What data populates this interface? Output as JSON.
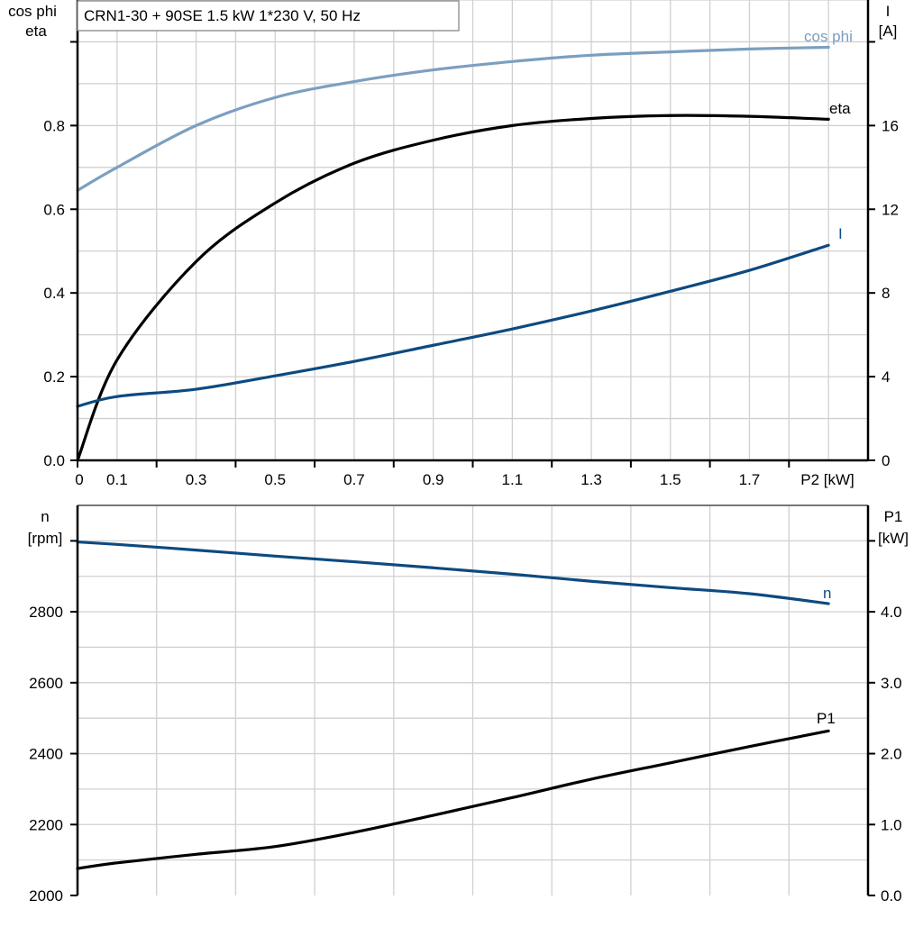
{
  "title": "CRN1-30 + 90SE   1.5 kW   1*230 V, 50 Hz",
  "colors": {
    "cos_phi": "#7b9fc0",
    "eta": "#000000",
    "I": "#0d4a80",
    "n": "#0d4a80",
    "P1": "#000000",
    "grid": "#d0d0d0"
  },
  "chart_data": [
    {
      "type": "line",
      "title": "CRN1-30 + 90SE   1.5 kW   1*230 V, 50 Hz",
      "xlabel": "P2 [kW]",
      "ylabel_left": [
        "cos phi",
        "eta"
      ],
      "ylabel_right": [
        "I",
        "[A]"
      ],
      "xlim": [
        0,
        2.0
      ],
      "ylim_left": [
        0,
        1.1
      ],
      "ylim_right": [
        0,
        22
      ],
      "grid": true,
      "x_tick_labels": [
        "0",
        "0.1",
        "0.3",
        "0.5",
        "0.7",
        "0.9",
        "1.1",
        "1.3",
        "1.5",
        "1.7"
      ],
      "y_left_tick_labels": [
        "0.0",
        "0.2",
        "0.4",
        "0.6",
        "0.8"
      ],
      "y_right_tick_labels": [
        "0",
        "4",
        "8",
        "12",
        "16"
      ],
      "x": [
        0,
        0.1,
        0.3,
        0.5,
        0.7,
        0.9,
        1.1,
        1.3,
        1.5,
        1.7,
        1.9
      ],
      "series": [
        {
          "name": "cos phi",
          "axis": "left",
          "values": [
            0.645,
            0.7,
            0.8,
            0.867,
            0.905,
            0.933,
            0.953,
            0.968,
            0.976,
            0.983,
            0.987
          ]
        },
        {
          "name": "eta",
          "axis": "left",
          "values": [
            0.0,
            0.24,
            0.475,
            0.615,
            0.71,
            0.765,
            0.8,
            0.817,
            0.824,
            0.822,
            0.815
          ]
        },
        {
          "name": "I",
          "axis": "right",
          "values": [
            2.58,
            3.05,
            3.4,
            4.04,
            4.73,
            5.5,
            6.28,
            7.14,
            8.08,
            9.08,
            10.28
          ]
        }
      ]
    },
    {
      "type": "line",
      "ylabel_left": [
        "n",
        "[rpm]"
      ],
      "ylabel_right": [
        "P1",
        "[kW]"
      ],
      "xlim": [
        0,
        2.0
      ],
      "ylim_left": [
        2000,
        3100
      ],
      "ylim_right": [
        0,
        5.5
      ],
      "grid": true,
      "y_left_tick_labels": [
        "2000",
        "2200",
        "2400",
        "2600",
        "2800"
      ],
      "y_right_tick_labels": [
        "0.0",
        "1.0",
        "2.0",
        "3.0",
        "4.0"
      ],
      "x": [
        0,
        0.1,
        0.3,
        0.5,
        0.7,
        0.9,
        1.1,
        1.3,
        1.5,
        1.7,
        1.9
      ],
      "series": [
        {
          "name": "n",
          "axis": "left",
          "values": [
            2997,
            2990,
            2974,
            2957,
            2941,
            2924,
            2906,
            2886,
            2868,
            2851,
            2823
          ]
        },
        {
          "name": "P1",
          "axis": "right",
          "values": [
            0.38,
            0.46,
            0.58,
            0.69,
            0.89,
            1.13,
            1.38,
            1.64,
            1.87,
            2.1,
            2.32
          ]
        }
      ]
    }
  ]
}
